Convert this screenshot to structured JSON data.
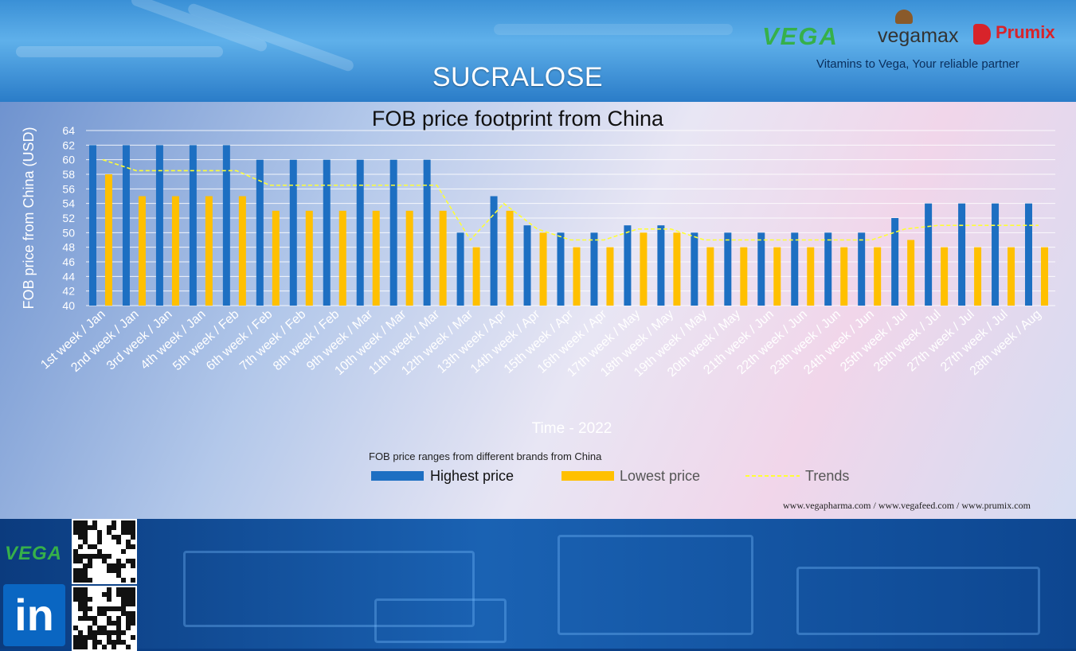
{
  "header": {
    "title": "SUCRALOSE",
    "tagline": "Vitamins to Vega, Your reliable partner",
    "logos": {
      "vega": "VEGA",
      "vegamax": "vegamax",
      "prumix": "Prumix"
    }
  },
  "footer": {
    "urls": "www.vegapharma.com / www.vegafeed.com / www.prumix.com",
    "side_brand": "VEGA",
    "linkedin": "in"
  },
  "colors": {
    "highest": "#1d6fc2",
    "lowest": "#ffc000",
    "trend": "#ffff33"
  },
  "chart_data": {
    "type": "bar",
    "title": "FOB price footprint from China",
    "xlabel": "Time - 2022",
    "ylabel": "FOB price from China (USD)",
    "ylim": [
      40,
      64
    ],
    "yticks": [
      40,
      42,
      44,
      46,
      48,
      50,
      52,
      54,
      56,
      58,
      60,
      62,
      64
    ],
    "legend_title": "FOB price ranges from different brands from China",
    "legend_position": "bottom",
    "categories": [
      "1st week / Jan",
      "2nd week / Jan",
      "3rd week / Jan",
      "4th week / Jan",
      "5th week / Feb",
      "6th week / Feb",
      "7th week / Feb",
      "8th week / Feb",
      "9th week / Mar",
      "10th week / Mar",
      "11th week / Mar",
      "12th week / Mar",
      "13th week / Apr",
      "14th week / Apr",
      "15th week / Apr",
      "16th week / Apr",
      "17th week / May",
      "18th week / May",
      "19th week / May",
      "20th week / May",
      "21th week / Jun",
      "22th week / Jun",
      "23th week / Jun",
      "24th week / Jun",
      "25th week / Jul",
      "26th week / Jul",
      "27th week / Jul",
      "27th week / Jul",
      "28th week / Aug"
    ],
    "series": [
      {
        "name": "Highest price",
        "kind": "bar",
        "values": [
          62,
          62,
          62,
          62,
          62,
          60,
          60,
          60,
          60,
          60,
          60,
          50,
          55,
          51,
          50,
          50,
          51,
          51,
          50,
          50,
          50,
          50,
          50,
          50,
          52,
          54,
          54,
          54,
          54
        ]
      },
      {
        "name": "Lowest price",
        "kind": "bar",
        "values": [
          58,
          55,
          55,
          55,
          55,
          53,
          53,
          53,
          53,
          53,
          53,
          48,
          53,
          50,
          48,
          48,
          50,
          50,
          48,
          48,
          48,
          48,
          48,
          48,
          49,
          48,
          48,
          48,
          48
        ]
      },
      {
        "name": "Trends",
        "kind": "line-dashed",
        "values": [
          60,
          58.5,
          58.5,
          58.5,
          58.5,
          56.5,
          56.5,
          56.5,
          56.5,
          56.5,
          56.5,
          49,
          54,
          50.5,
          49,
          49,
          50.5,
          50.5,
          49,
          49,
          49,
          49,
          49,
          49,
          50.5,
          51,
          51,
          51,
          51
        ]
      }
    ]
  }
}
